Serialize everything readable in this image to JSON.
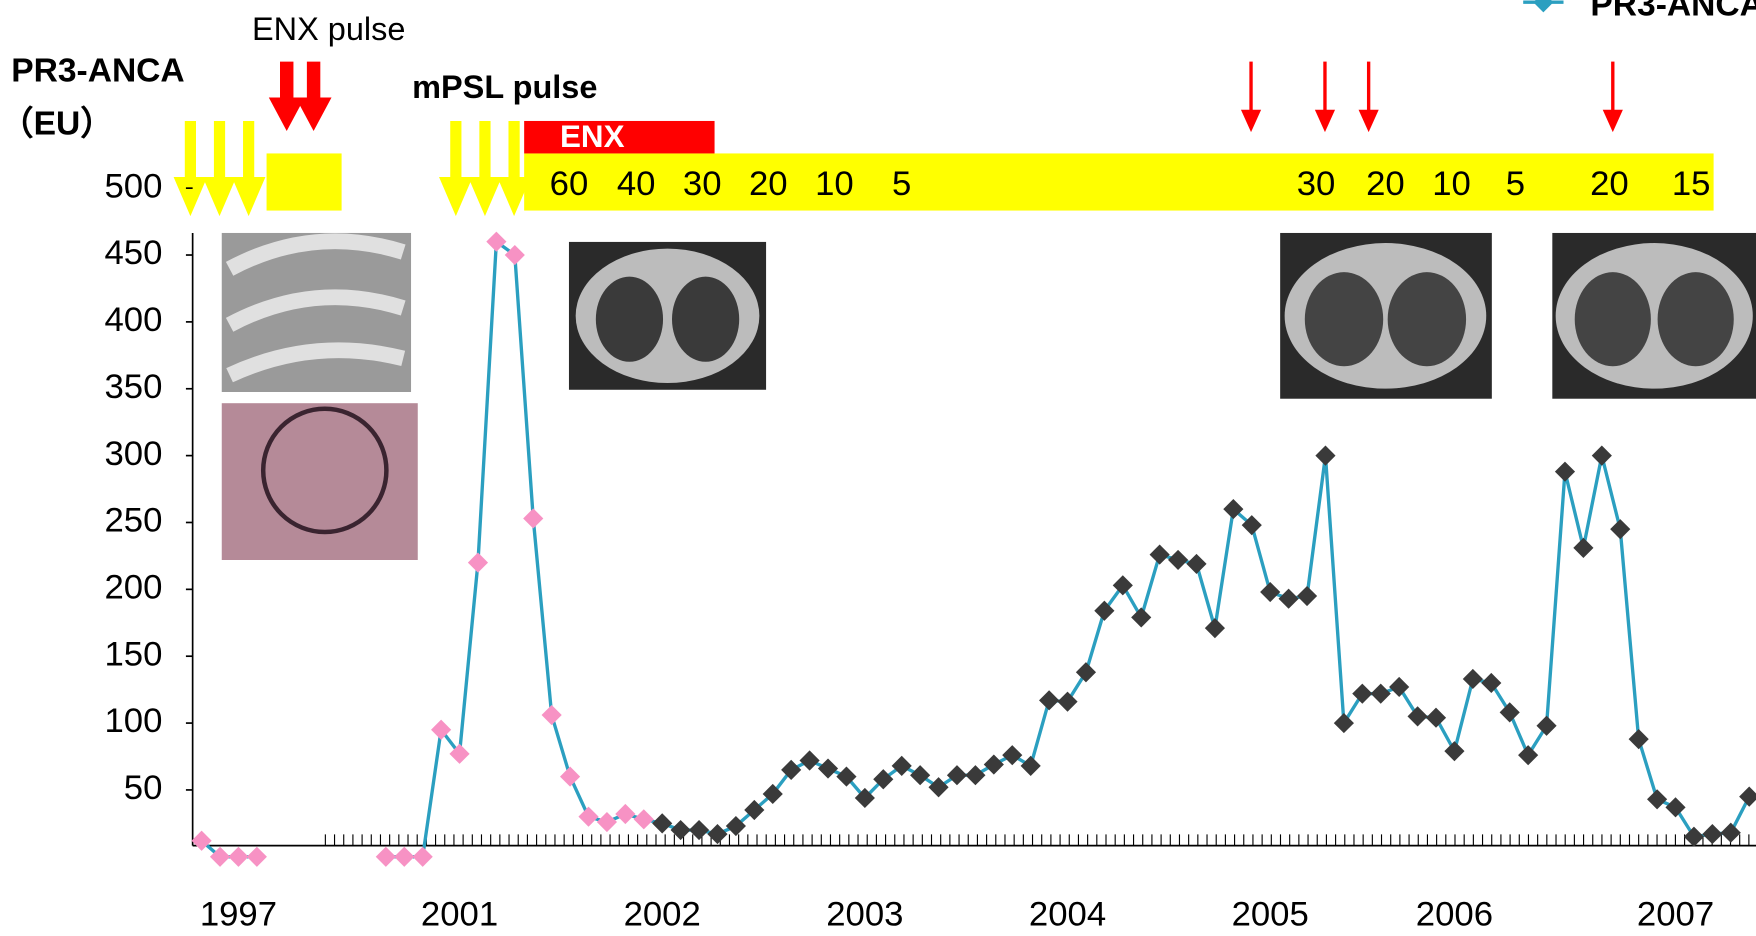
{
  "chart_data": {
    "type": "line",
    "y_label": [
      "PR3-ANCA",
      "（EU）"
    ],
    "annotations": [
      "ENX pulse",
      "mPSL pulse",
      "ENX"
    ],
    "doses": [
      60,
      40,
      30,
      20,
      10,
      5,
      30,
      20,
      10,
      5,
      20,
      15
    ],
    "categories": [
      null,
      null,
      "1997",
      null,
      null,
      null,
      null,
      null,
      null,
      null,
      null,
      null,
      null,
      null,
      "2001",
      null,
      null,
      null,
      null,
      null,
      null,
      null,
      null,
      null,
      null,
      "2002",
      null,
      null,
      null,
      null,
      null,
      null,
      null,
      null,
      null,
      null,
      "2003",
      null,
      null,
      null,
      null,
      null,
      null,
      null,
      null,
      null,
      null,
      "2004",
      null,
      null,
      null,
      null,
      null,
      null,
      null,
      null,
      null,
      null,
      "2005",
      null,
      null,
      null,
      null,
      null,
      null,
      null,
      null,
      null,
      "2006",
      null,
      null,
      null,
      null,
      null,
      null,
      null,
      null,
      null,
      null,
      null,
      "2007",
      null,
      null,
      null,
      null
    ],
    "series": [
      {
        "name": "PR3-ANCA",
        "color": "#2b9fc0",
        "values": [
          12,
          0,
          0,
          0,
          null,
          null,
          null,
          null,
          null,
          null,
          0,
          0,
          0,
          95,
          77,
          220,
          460,
          450,
          253,
          106,
          60,
          30,
          26,
          32,
          28,
          25,
          20,
          20,
          17,
          23,
          35,
          47,
          65,
          72,
          66,
          60,
          44,
          58,
          68,
          61,
          52,
          61,
          61,
          69,
          76,
          68,
          117,
          116,
          138,
          184,
          203,
          179,
          226,
          222,
          219,
          171,
          260,
          248,
          198,
          193,
          195,
          300,
          100,
          122,
          122,
          127,
          105,
          104,
          79,
          133,
          130,
          108,
          76,
          98,
          288,
          231,
          300,
          245,
          88,
          43,
          37,
          15,
          17,
          18,
          45
        ],
        "marker_colors": [
          "#f792c4",
          "#f792c4",
          "#f792c4",
          "#f792c4",
          null,
          null,
          null,
          null,
          null,
          null,
          "#f792c4",
          "#f792c4",
          "#f792c4",
          "#f792c4",
          "#f792c4",
          "#f792c4",
          "#f792c4",
          "#f792c4",
          "#f792c4",
          "#f792c4",
          "#f792c4",
          "#f792c4",
          "#f792c4",
          "#f792c4",
          "#f792c4",
          "#3a3a3a",
          "#3a3a3a",
          "#3a3a3a",
          "#3a3a3a",
          "#3a3a3a",
          "#3a3a3a",
          "#3a3a3a",
          "#3a3a3a",
          "#3a3a3a",
          "#3a3a3a",
          "#3a3a3a",
          "#3a3a3a",
          "#3a3a3a",
          "#3a3a3a",
          "#3a3a3a",
          "#3a3a3a",
          "#3a3a3a",
          "#3a3a3a",
          "#3a3a3a",
          "#3a3a3a",
          "#3a3a3a",
          "#3a3a3a",
          "#3a3a3a",
          "#3a3a3a",
          "#3a3a3a",
          "#3a3a3a",
          "#3a3a3a",
          "#3a3a3a",
          "#3a3a3a",
          "#3a3a3a",
          "#3a3a3a",
          "#3a3a3a",
          "#3a3a3a",
          "#3a3a3a",
          "#3a3a3a",
          "#3a3a3a",
          "#3a3a3a",
          "#3a3a3a",
          "#3a3a3a",
          "#3a3a3a",
          "#3a3a3a",
          "#3a3a3a",
          "#3a3a3a",
          "#3a3a3a",
          "#3a3a3a",
          "#3a3a3a",
          "#3a3a3a",
          "#3a3a3a",
          "#3a3a3a",
          "#3a3a3a",
          "#3a3a3a",
          "#3a3a3a",
          "#3a3a3a",
          "#3a3a3a",
          "#3a3a3a",
          "#3a3a3a",
          "#3a3a3a",
          "#3a3a3a",
          "#3a3a3a",
          "#3a3a3a"
        ]
      }
    ],
    "ylim": [
      0,
      500
    ],
    "yticks": [
      50,
      100,
      150,
      200,
      250,
      300,
      350,
      400,
      450,
      500
    ],
    "grid": false
  }
}
